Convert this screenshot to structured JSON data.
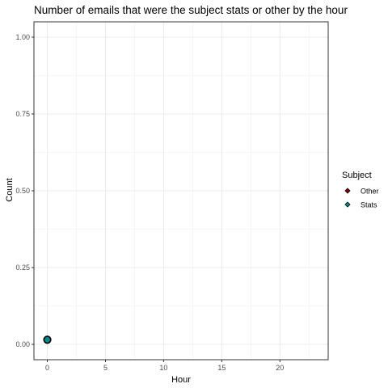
{
  "chart_data": {
    "type": "scatter",
    "title": "Number of emails that were the subject stats or other by the hour",
    "xlabel": "Hour",
    "ylabel": "Count",
    "xlim": [
      -1.15,
      24.15
    ],
    "ylim": [
      -0.05,
      1.05
    ],
    "x_ticks": [
      0,
      5,
      10,
      15,
      20
    ],
    "x_tick_labels": [
      "0",
      "5",
      "10",
      "15",
      "20"
    ],
    "y_ticks": [
      0,
      0.25,
      0.5,
      0.75,
      1.0
    ],
    "y_tick_labels": [
      "0.00",
      "0.25",
      "0.50",
      "0.75",
      "1.00"
    ],
    "grid": true,
    "legend": {
      "title": "Subject",
      "position": "right"
    },
    "series": [
      {
        "name": "Other",
        "color": "#8b0000",
        "points": [
          {
            "x": 0,
            "y": 0.015
          }
        ]
      },
      {
        "name": "Stats",
        "color": "#008b8b",
        "points": [
          {
            "x": 0,
            "y": 0.015
          }
        ]
      }
    ]
  }
}
